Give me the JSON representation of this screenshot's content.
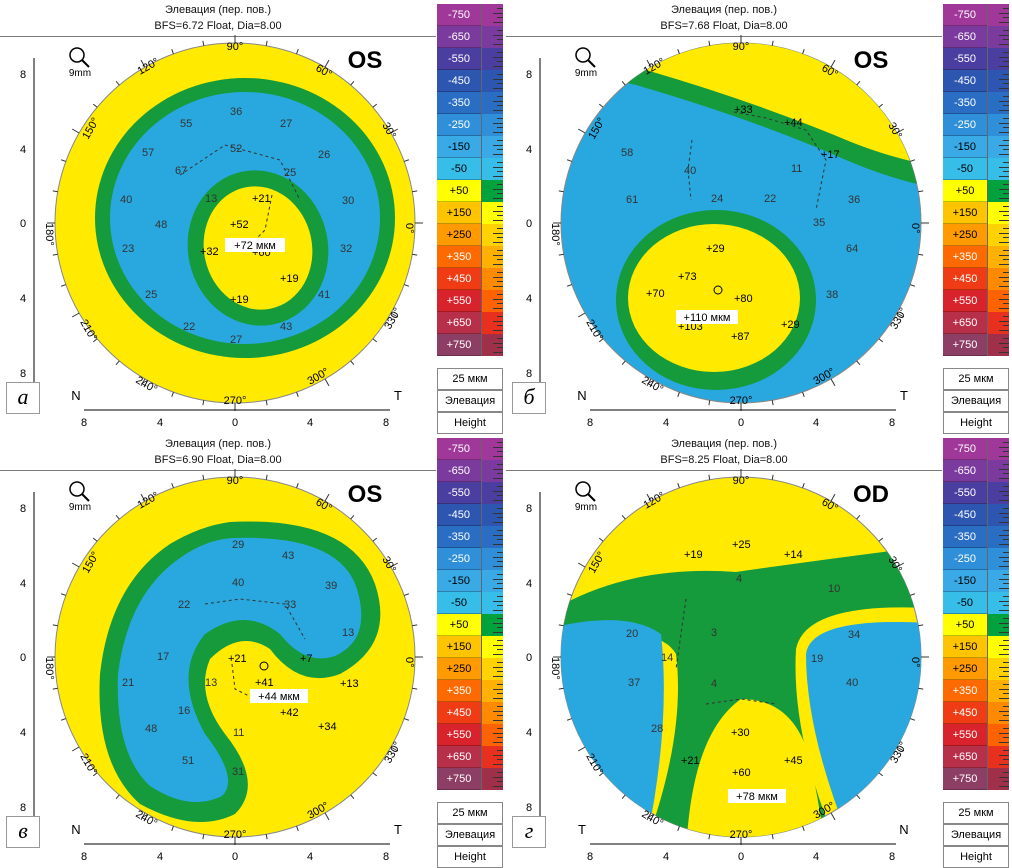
{
  "elevation_title": "Элевация (пер. пов.)",
  "units": "25 мкм",
  "mode_label": "Элевация",
  "height_label": "Height",
  "zoom_label": "9mm",
  "scale_values": [
    "-750",
    "-650",
    "-550",
    "-450",
    "-350",
    "-250",
    "-150",
    "-50",
    "+50",
    "+150",
    "+250",
    "+350",
    "+450",
    "+550",
    "+650",
    "+750"
  ],
  "scale_colors": [
    "#a0389a",
    "#7b3a9e",
    "#4a3fa0",
    "#2c56b0",
    "#2a6ec4",
    "#2f8fd8",
    "#3aaae6",
    "#36bde8",
    "#ffff00",
    "#ffc400",
    "#ff9a00",
    "#ff6a00",
    "#f03c14",
    "#d8222c",
    "#b82f4a",
    "#8d3e64"
  ],
  "scale_right_colors": [
    "#a0389a",
    "#7b3a9e",
    "#4a3fa0",
    "#2c56b0",
    "#2a6ec4",
    "#2f8fd8",
    "#3aaae6",
    "#36bde8",
    "#00a23e",
    "#ffff00",
    "#ffd200",
    "#ffb000",
    "#ff8a00",
    "#ff6200",
    "#e8301e",
    "#a0304a"
  ],
  "axis": {
    "deg_90": "90°",
    "deg_270": "270°",
    "deg_0": "0°",
    "deg_180": "180°",
    "ticks_y": [
      "8",
      "4",
      "0",
      "4",
      "8"
    ],
    "ticks_x": [
      "8",
      "4",
      "0",
      "4",
      "8"
    ],
    "angles": [
      "120°",
      "60°",
      "150°",
      "30°",
      "210°",
      "330°",
      "240°",
      "300°"
    ]
  },
  "panels": [
    {
      "id": "a",
      "letter": "а",
      "bfs": "BFS=6.72 Float, Dia=8.00",
      "eye": "OS",
      "left_side": "N",
      "right_side": "T",
      "center_label": "+72 мкм",
      "numbers": [
        "36",
        "55",
        "27",
        "52",
        "57",
        "26",
        "67",
        "25",
        "+21",
        "13",
        "40",
        "+52",
        "30",
        "48",
        "+72",
        "32",
        "+32",
        "23",
        "+60",
        "+19",
        "25",
        "+19",
        "41",
        "22",
        "43",
        "27"
      ]
    },
    {
      "id": "b",
      "letter": "б",
      "bfs": "BFS=7.68 Float, Dia=8.00",
      "eye": "OS",
      "left_side": "N",
      "right_side": "T",
      "center_label": "+110 мкм",
      "numbers": [
        "+33",
        "+44",
        "+17",
        "58",
        "40",
        "11",
        "61",
        "24",
        "22",
        "36",
        "35",
        "+29",
        "64",
        "+73",
        "+70",
        "+80",
        "38",
        "+103",
        "+29",
        "+87"
      ]
    },
    {
      "id": "v",
      "letter": "в",
      "bfs": "BFS=6.90 Float, Dia=8.00",
      "eye": "OS",
      "left_side": "N",
      "right_side": "T",
      "center_label": "+44 мкм",
      "numbers": [
        "29",
        "43",
        "40",
        "39",
        "22",
        "33",
        "13",
        "17",
        "+21",
        "+7",
        "+41",
        "21",
        "13",
        "+13",
        "+42",
        "48",
        "16",
        "+34",
        "11",
        "51",
        "31"
      ]
    },
    {
      "id": "g",
      "letter": "г",
      "bfs": "BFS=8.25 Float, Dia=8.00",
      "eye": "OD",
      "left_side": "T",
      "right_side": "N",
      "center_label": "+78 мкм",
      "numbers": [
        "+25",
        "+19",
        "+14",
        "4",
        "10",
        "20",
        "34",
        "14",
        "3",
        "19",
        "37",
        "4",
        "40",
        "28",
        "+30",
        "+21",
        "+45",
        "+60"
      ]
    }
  ]
}
